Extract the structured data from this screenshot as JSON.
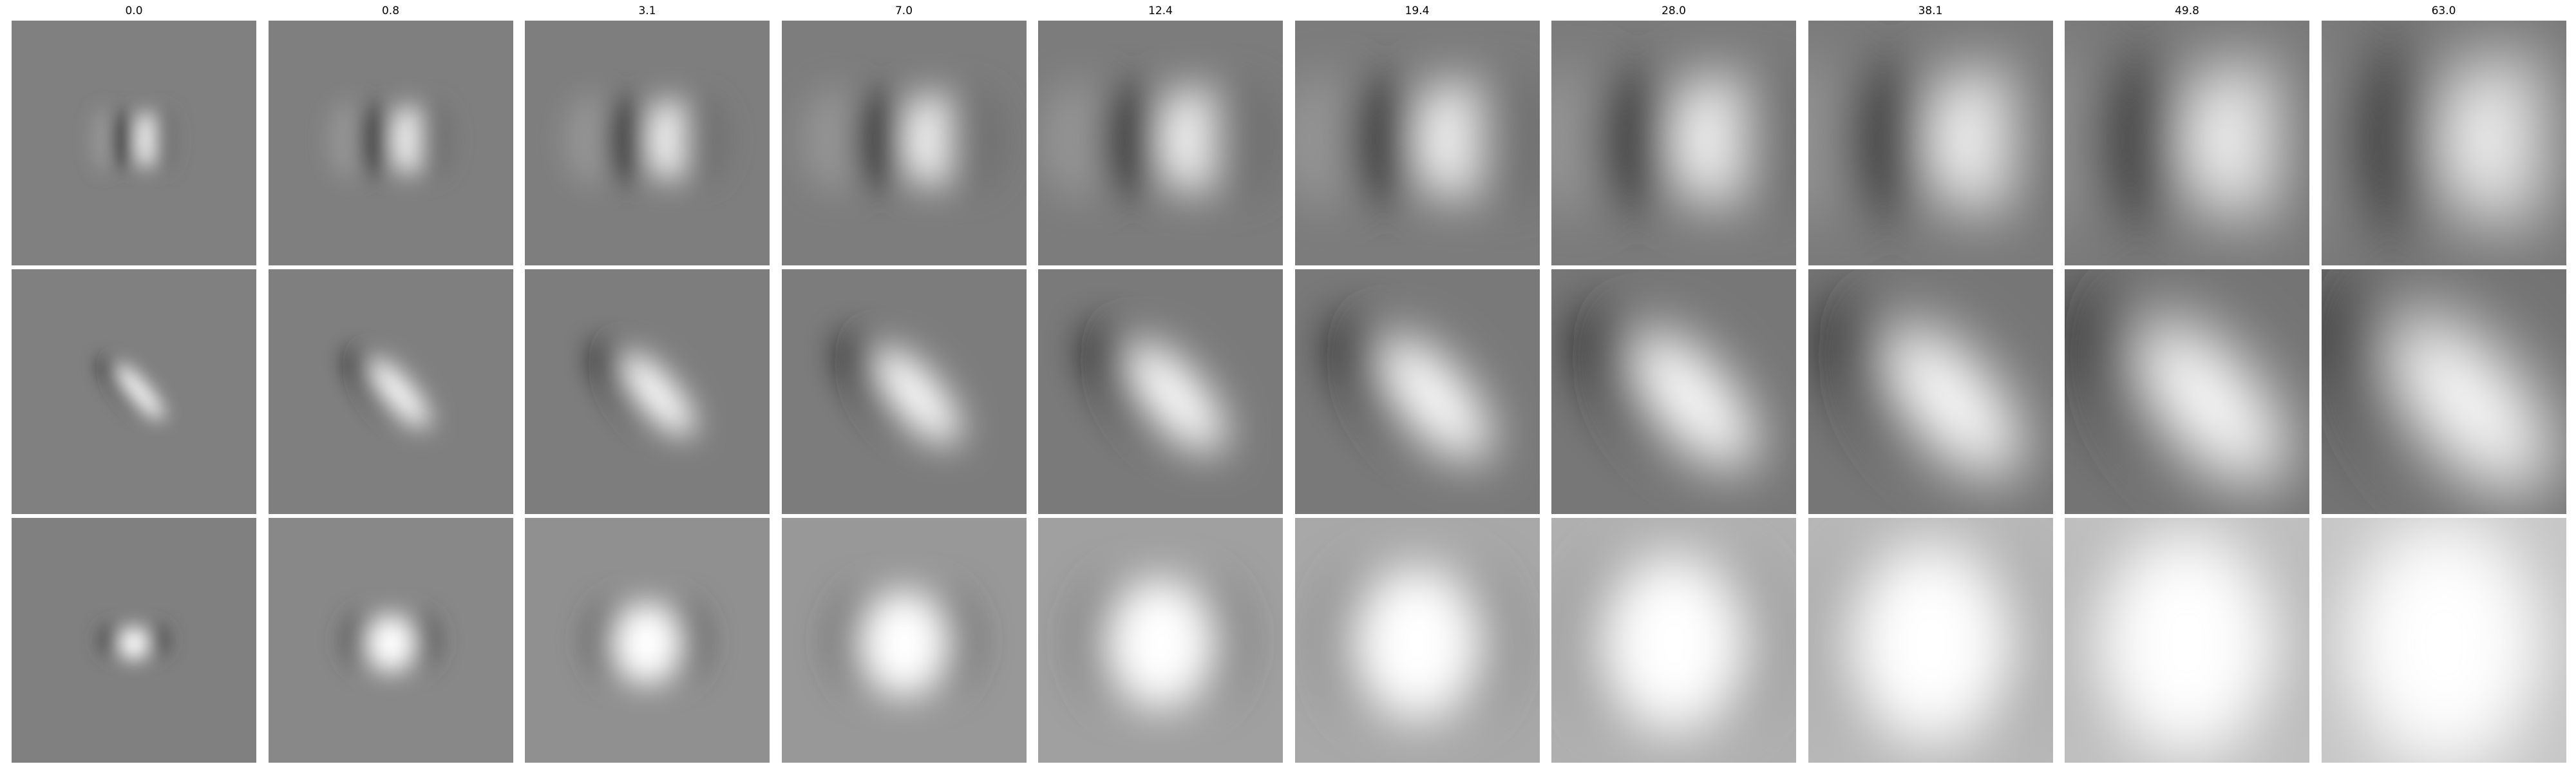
{
  "columns": [
    "0.0",
    "0.8",
    "3.1",
    "7.0",
    "12.4",
    "19.4",
    "28.0",
    "38.1",
    "49.8",
    "63.0"
  ],
  "rows": 3,
  "colors": {
    "background": "#ffffff",
    "neutral_gray": "#808080",
    "dark": "#000000",
    "light": "#ffffff"
  }
}
